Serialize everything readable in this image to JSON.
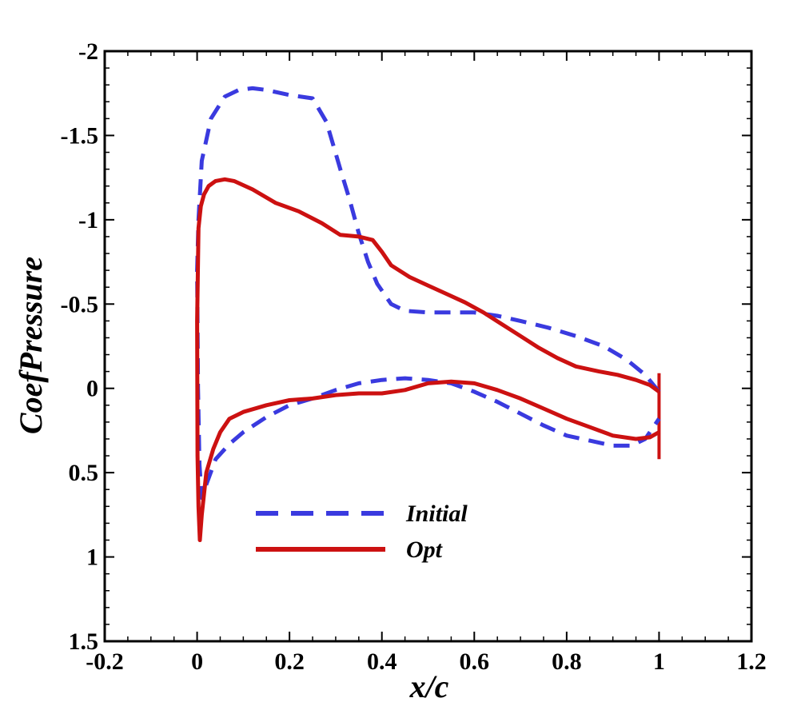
{
  "chart_data": {
    "type": "line",
    "title": "",
    "xlabel": "x/c",
    "ylabel": "CoefPressure",
    "xlim": [
      -0.2,
      1.2
    ],
    "ylim": [
      -2,
      1.5
    ],
    "y_inverted": true,
    "grid": false,
    "legend_position": "bottom-left",
    "xticks": [
      -0.2,
      0,
      0.2,
      0.4,
      0.6,
      0.8,
      1,
      1.2
    ],
    "xtick_labels": [
      "-0.2",
      "0",
      "0.2",
      "0.4",
      "0.6",
      "0.8",
      "1",
      "1.2"
    ],
    "yticks": [
      -2,
      -1.5,
      -1,
      -0.5,
      0,
      0.5,
      1,
      1.5
    ],
    "ytick_labels": [
      "-2",
      "-1.5",
      "-1",
      "-0.5",
      "0",
      "0.5",
      "1",
      "1.5"
    ],
    "series": [
      {
        "name": "Initial",
        "color": "#3a3adf",
        "style": "dashed",
        "x": [
          1.0,
          0.97,
          0.93,
          0.88,
          0.82,
          0.76,
          0.7,
          0.65,
          0.6,
          0.55,
          0.5,
          0.45,
          0.42,
          0.39,
          0.37,
          0.35,
          0.33,
          0.31,
          0.28,
          0.25,
          0.2,
          0.15,
          0.12,
          0.09,
          0.06,
          0.03,
          0.01,
          0.003,
          0.0,
          0.002,
          0.005,
          0.01,
          0.02,
          0.04,
          0.07,
          0.1,
          0.15,
          0.2,
          0.25,
          0.3,
          0.35,
          0.4,
          0.45,
          0.5,
          0.55,
          0.6,
          0.65,
          0.7,
          0.75,
          0.8,
          0.85,
          0.9,
          0.94,
          0.97,
          1.0
        ],
        "y": [
          0.02,
          -0.08,
          -0.17,
          -0.25,
          -0.31,
          -0.36,
          -0.4,
          -0.43,
          -0.45,
          -0.45,
          -0.45,
          -0.46,
          -0.5,
          -0.62,
          -0.75,
          -0.92,
          -1.12,
          -1.3,
          -1.58,
          -1.72,
          -1.74,
          -1.77,
          -1.78,
          -1.77,
          -1.73,
          -1.6,
          -1.35,
          -1.0,
          -0.7,
          0.0,
          0.45,
          0.65,
          0.57,
          0.42,
          0.33,
          0.26,
          0.17,
          0.1,
          0.06,
          0.01,
          -0.03,
          -0.05,
          -0.06,
          -0.05,
          -0.03,
          0.02,
          0.08,
          0.15,
          0.22,
          0.28,
          0.31,
          0.34,
          0.34,
          0.3,
          0.18
        ]
      },
      {
        "name": "Opt",
        "color": "#cc1111",
        "style": "solid",
        "x": [
          1.0,
          0.98,
          0.95,
          0.91,
          0.87,
          0.82,
          0.78,
          0.74,
          0.7,
          0.66,
          0.62,
          0.58,
          0.54,
          0.5,
          0.46,
          0.42,
          0.4,
          0.38,
          0.35,
          0.31,
          0.27,
          0.22,
          0.17,
          0.12,
          0.08,
          0.06,
          0.04,
          0.025,
          0.015,
          0.008,
          0.003,
          0.0,
          0.001,
          0.003,
          0.006,
          0.01,
          0.02,
          0.035,
          0.05,
          0.07,
          0.1,
          0.15,
          0.2,
          0.25,
          0.3,
          0.35,
          0.4,
          0.45,
          0.5,
          0.55,
          0.6,
          0.65,
          0.7,
          0.75,
          0.8,
          0.85,
          0.9,
          0.95,
          0.98,
          1.0
        ],
        "y": [
          0.02,
          -0.02,
          -0.05,
          -0.08,
          -0.1,
          -0.13,
          -0.18,
          -0.24,
          -0.31,
          -0.38,
          -0.45,
          -0.51,
          -0.56,
          -0.61,
          -0.66,
          -0.73,
          -0.81,
          -0.88,
          -0.9,
          -0.91,
          -0.98,
          -1.05,
          -1.1,
          -1.18,
          -1.23,
          -1.24,
          -1.23,
          -1.2,
          -1.15,
          -1.08,
          -0.95,
          -0.4,
          0.4,
          0.7,
          0.9,
          0.75,
          0.5,
          0.36,
          0.26,
          0.18,
          0.14,
          0.1,
          0.07,
          0.06,
          0.04,
          0.03,
          0.03,
          0.01,
          -0.03,
          -0.04,
          -0.03,
          0.01,
          0.06,
          0.12,
          0.18,
          0.23,
          0.28,
          0.3,
          0.29,
          0.26
        ]
      }
    ],
    "annotations": [
      {
        "type": "vertical-line",
        "x": 1.0,
        "y_from": -0.09,
        "y_to": 0.42,
        "color": "#cc1111"
      }
    ]
  }
}
